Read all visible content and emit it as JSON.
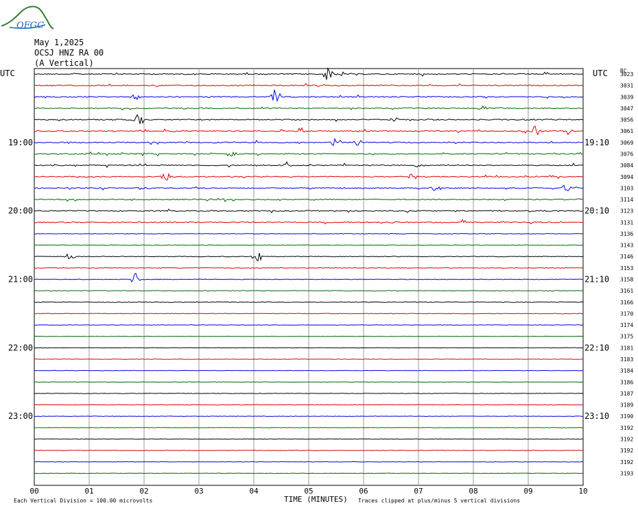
{
  "logo": {
    "text": "OFGC",
    "icon": "mountain-logo-icon"
  },
  "header": {
    "date": "May 1,2025",
    "station": "OCSJ HNZ RA 00",
    "component": "(A Vertical)"
  },
  "chart_data": {
    "type": "helicorder",
    "title": "OCSJ HNZ RA 00 (A Vertical)",
    "xlabel": "TIME (MINUTES)",
    "x_ticks": [
      "00",
      "01",
      "02",
      "03",
      "04",
      "05",
      "06",
      "07",
      "08",
      "09",
      "10"
    ],
    "left_axis_label": "UTC",
    "right_axis_label": "UTC",
    "left_hour_labels": [
      {
        "row": 6,
        "text": "19:00"
      },
      {
        "row": 12,
        "text": "20:00"
      },
      {
        "row": 18,
        "text": "21:00"
      },
      {
        "row": 24,
        "text": "22:00"
      },
      {
        "row": 30,
        "text": "23:00"
      }
    ],
    "right_hour_labels": [
      {
        "row": 6,
        "text": "19:10"
      },
      {
        "row": 12,
        "text": "20:10"
      },
      {
        "row": 18,
        "text": "21:10"
      },
      {
        "row": 24,
        "text": "22:10"
      },
      {
        "row": 30,
        "text": "23:10"
      }
    ],
    "rc_header": "RC",
    "rc_values": [
      "3023",
      "3031",
      "3039",
      "3047",
      "3056",
      "3061",
      "3069",
      "3076",
      "3084",
      "3094",
      "3103",
      "3114",
      "3123",
      "3131",
      "3136",
      "3143",
      "3146",
      "3153",
      "3158",
      "3161",
      "3166",
      "3170",
      "3174",
      "3175",
      "3181",
      "3183",
      "3184",
      "3186",
      "3187",
      "3189",
      "3190",
      "3192",
      "3192",
      "3192",
      "3192",
      "3193"
    ],
    "trace_colors": [
      "#000000",
      "#dd0000",
      "#0000dd",
      "#006600"
    ],
    "rows": 36,
    "minutes_per_row": 10,
    "events": [
      {
        "row": 0,
        "minute": 5.35,
        "amp": 12
      },
      {
        "row": 0,
        "minute": 5.6,
        "amp": 4
      },
      {
        "row": 2,
        "minute": 4.4,
        "amp": 14
      },
      {
        "row": 2,
        "minute": 1.85,
        "amp": 6
      },
      {
        "row": 3,
        "minute": 8.2,
        "amp": 6
      },
      {
        "row": 4,
        "minute": 1.9,
        "amp": 12
      },
      {
        "row": 4,
        "minute": 6.55,
        "amp": 4
      },
      {
        "row": 5,
        "minute": 9.15,
        "amp": 12
      },
      {
        "row": 5,
        "minute": 9.75,
        "amp": 6
      },
      {
        "row": 5,
        "minute": 4.85,
        "amp": 6
      },
      {
        "row": 6,
        "minute": 5.5,
        "amp": 10
      },
      {
        "row": 6,
        "minute": 5.9,
        "amp": 6
      },
      {
        "row": 7,
        "minute": 3.6,
        "amp": 6
      },
      {
        "row": 8,
        "minute": 4.6,
        "amp": 6
      },
      {
        "row": 8,
        "minute": 7.0,
        "amp": 5
      },
      {
        "row": 9,
        "minute": 2.4,
        "amp": 8
      },
      {
        "row": 9,
        "minute": 6.9,
        "amp": 5
      },
      {
        "row": 10,
        "minute": 9.7,
        "amp": 6
      },
      {
        "row": 10,
        "minute": 7.3,
        "amp": 6
      },
      {
        "row": 13,
        "minute": 7.85,
        "amp": 7
      },
      {
        "row": 16,
        "minute": 0.65,
        "amp": 6
      },
      {
        "row": 16,
        "minute": 4.05,
        "amp": 14
      },
      {
        "row": 18,
        "minute": 1.85,
        "amp": 10
      }
    ],
    "y_division_note": "Each Vertical Division = 100.00 microvolts",
    "clip_note": "Traces clipped at plus/minus 5 vertical divisions",
    "grid": true
  }
}
